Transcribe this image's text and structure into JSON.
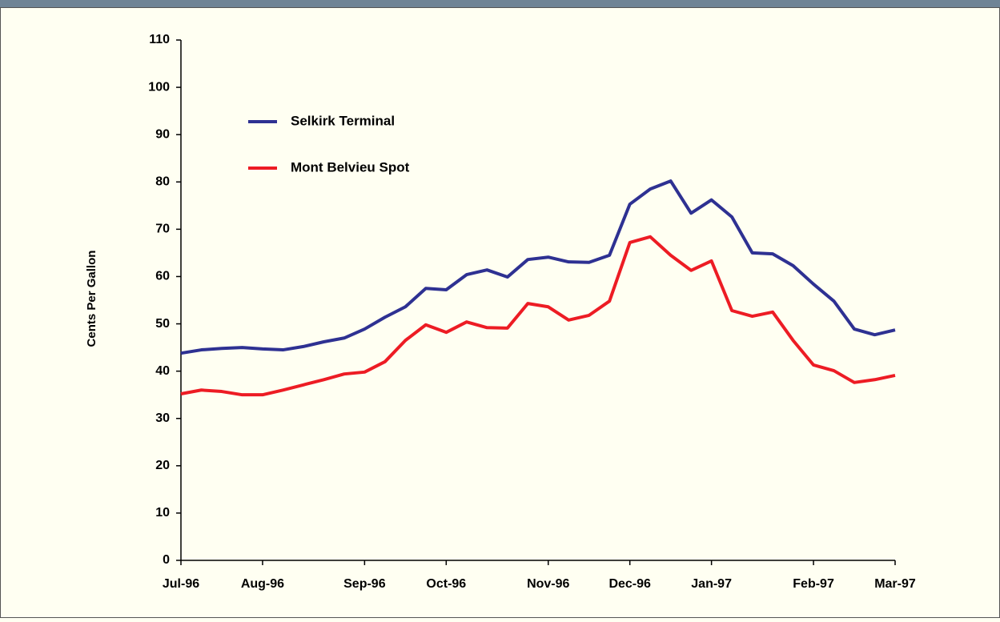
{
  "chart_data": {
    "type": "line",
    "y_label": "Cents Per Gallon",
    "categories": [
      "Jul-96",
      null,
      null,
      null,
      "Aug-96",
      null,
      null,
      null,
      null,
      "Sep-96",
      null,
      null,
      null,
      "Oct-96",
      null,
      null,
      null,
      null,
      "Nov-96",
      null,
      null,
      null,
      "Dec-96",
      null,
      null,
      null,
      "Jan-97",
      null,
      null,
      null,
      null,
      "Feb-97",
      null,
      null,
      null,
      "Mar-97"
    ],
    "series": [
      {
        "name": "Selkirk Terminal",
        "color": "#2e3192",
        "values": [
          43.8,
          44.5,
          44.8,
          45.0,
          44.7,
          44.5,
          45.2,
          46.2,
          47.0,
          48.9,
          51.4,
          53.6,
          57.5,
          57.2,
          60.4,
          61.4,
          59.9,
          63.6,
          64.1,
          63.1,
          63.0,
          64.5,
          75.3,
          78.5,
          80.2,
          73.4,
          76.2,
          72.6,
          65.0,
          64.8,
          62.3,
          58.4,
          54.8,
          48.9,
          47.7,
          48.7
        ]
      },
      {
        "name": "Mont Belvieu Spot",
        "color": "#ed1c24",
        "values": [
          35.2,
          36.0,
          35.7,
          35.0,
          35.0,
          36.0,
          37.1,
          38.2,
          39.4,
          39.8,
          42.0,
          46.5,
          49.8,
          48.2,
          50.4,
          49.2,
          49.1,
          54.3,
          53.6,
          50.8,
          51.8,
          54.8,
          67.2,
          68.4,
          64.5,
          61.3,
          63.3,
          52.8,
          51.6,
          52.5,
          46.5,
          41.3,
          40.1,
          37.6,
          38.2,
          39.1
        ]
      }
    ],
    "ylim": [
      0,
      110
    ],
    "yticks": [
      0,
      10,
      20,
      30,
      40,
      50,
      60,
      70,
      80,
      90,
      100,
      110
    ],
    "grid": false,
    "legend": "upper left"
  }
}
